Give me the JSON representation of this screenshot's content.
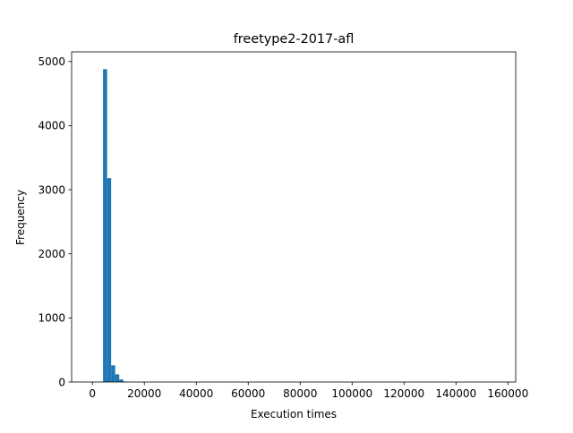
{
  "chart_data": {
    "type": "histogram",
    "title": "freetype2-2017-afl",
    "xlabel": "Execution times",
    "ylabel": "Frequency",
    "xlim": [
      -8000,
      163000
    ],
    "ylim": [
      0,
      5150
    ],
    "xticks": [
      0,
      20000,
      40000,
      60000,
      80000,
      100000,
      120000,
      140000,
      160000
    ],
    "yticks": [
      0,
      1000,
      2000,
      3000,
      4000,
      5000
    ],
    "bin_width": 1560,
    "bins": [
      {
        "x0": 4100,
        "x1": 5660,
        "count": 4880
      },
      {
        "x0": 5660,
        "x1": 7220,
        "count": 3180
      },
      {
        "x0": 7220,
        "x1": 8780,
        "count": 260
      },
      {
        "x0": 8780,
        "x1": 10340,
        "count": 120
      },
      {
        "x0": 10340,
        "x1": 11900,
        "count": 40
      },
      {
        "x0": 11900,
        "x1": 13460,
        "count": 8
      }
    ],
    "bar_color": "#1f77b4",
    "grid": false,
    "legend": "none"
  }
}
